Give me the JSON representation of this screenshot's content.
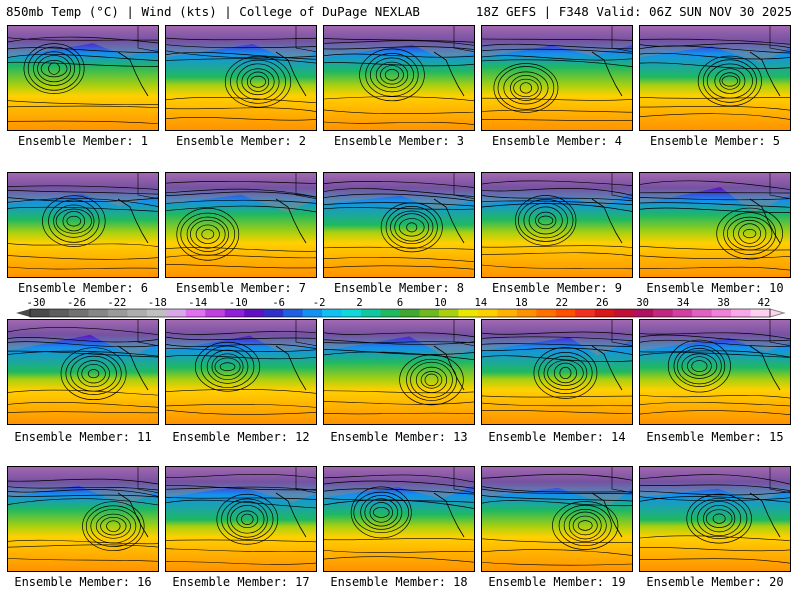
{
  "header": {
    "left": "850mb Temp (°C) | Wind (kts) | College of DuPage NEXLAB",
    "right": "18Z GEFS | F348 Valid: 06Z SUN NOV 30 2025"
  },
  "caption_prefix": "Ensemble Member: ",
  "members": [
    1,
    2,
    3,
    4,
    5,
    6,
    7,
    8,
    9,
    10,
    11,
    12,
    13,
    14,
    15,
    16,
    17,
    18,
    19,
    20
  ],
  "colorbar": {
    "ticks": [
      "-30",
      "-26",
      "-22",
      "-18",
      "-14",
      "-10",
      "-6",
      "-2",
      "2",
      "6",
      "10",
      "14",
      "18",
      "22",
      "26",
      "30",
      "34",
      "38",
      "42"
    ],
    "colors": [
      "#4a4a4a",
      "#5e5e5e",
      "#727272",
      "#868686",
      "#9a9a9a",
      "#aeaeae",
      "#c0c0c0",
      "#d8a8e8",
      "#e070f0",
      "#c040e0",
      "#9020d8",
      "#6010c0",
      "#3030c8",
      "#2060e0",
      "#1490f0",
      "#10c0f0",
      "#10d8d8",
      "#10c8a0",
      "#20b860",
      "#40a830",
      "#70b820",
      "#a8d010",
      "#e8e800",
      "#ffd000",
      "#ffb000",
      "#ff9000",
      "#ff7000",
      "#ff5000",
      "#f03020",
      "#d81818",
      "#c01038",
      "#b01060",
      "#c02880",
      "#d040a0",
      "#e060c0",
      "#f080d8",
      "#f8a8e8",
      "#ffd0f0"
    ]
  }
}
